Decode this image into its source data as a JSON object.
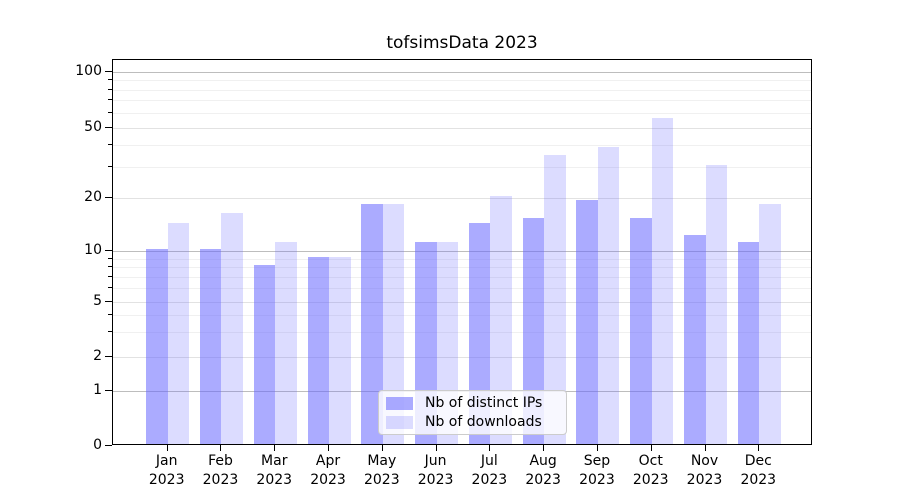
{
  "chart_data": {
    "type": "bar",
    "title": "tofsimsData 2023",
    "categories": [
      "Jan",
      "Feb",
      "Mar",
      "Apr",
      "May",
      "Jun",
      "Jul",
      "Aug",
      "Sep",
      "Oct",
      "Nov",
      "Dec"
    ],
    "x_year": "2023",
    "series": [
      {
        "name": "Nb of distinct IPs",
        "color": "rgba(102,102,255,0.55)",
        "values": [
          10,
          10,
          8,
          9,
          18,
          11,
          14,
          15,
          19,
          15,
          12,
          11
        ]
      },
      {
        "name": "Nb of downloads",
        "color": "rgba(102,102,255,0.23)",
        "values": [
          14,
          16,
          11,
          9,
          18,
          11,
          20,
          34,
          38,
          55,
          30,
          18
        ]
      }
    ],
    "y_axis": {
      "scale": "symlog",
      "major_ticks": [
        0,
        1,
        2,
        5,
        10,
        20,
        50,
        100
      ],
      "decade_ticks": [
        1,
        10,
        100
      ],
      "minor_ticks": [
        3,
        4,
        6,
        7,
        8,
        9,
        30,
        40,
        60,
        70,
        80,
        90
      ],
      "ylim": [
        0,
        115
      ]
    },
    "grid": true,
    "legend_position": "lower center"
  }
}
